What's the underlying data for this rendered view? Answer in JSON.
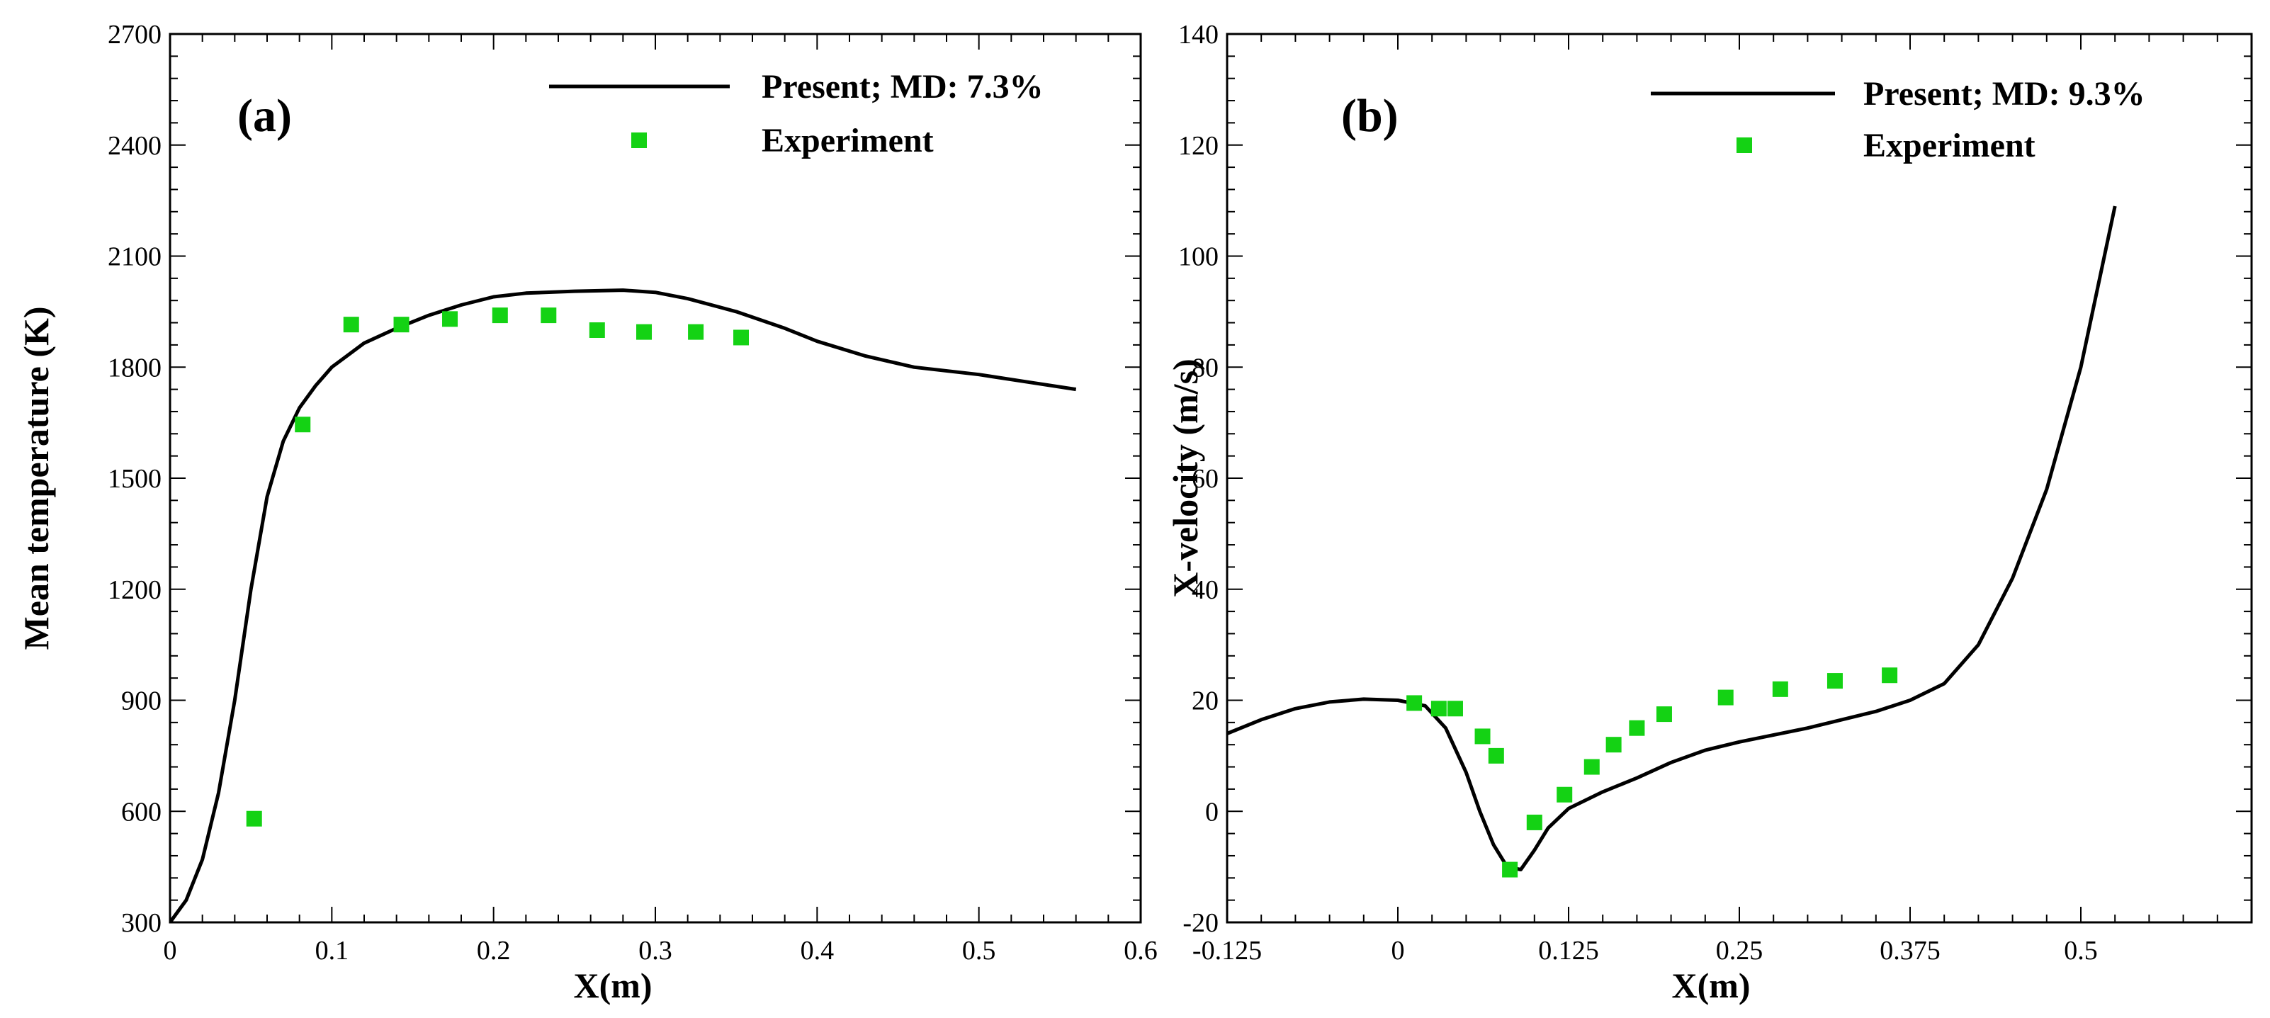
{
  "chart_data": [
    {
      "type": "line",
      "panel_label": "(a)",
      "xlabel": "X(m)",
      "ylabel": "Mean temperature (K)",
      "xlim": [
        0,
        0.6
      ],
      "ylim": [
        300,
        2700
      ],
      "xticks": [
        0,
        0.1,
        0.2,
        0.3,
        0.4,
        0.5,
        0.6
      ],
      "xtick_labels": [
        "0",
        "0.1",
        "0.2",
        "0.3",
        "0.4",
        "0.5",
        "0.6"
      ],
      "yticks": [
        300,
        600,
        900,
        1200,
        1500,
        1800,
        2100,
        2400,
        2700
      ],
      "ytick_labels": [
        "300",
        "600",
        "900",
        "1200",
        "1500",
        "1800",
        "2100",
        "2400",
        "2700"
      ],
      "legend_position": "top-right",
      "series": [
        {
          "name": "Present; MD: 7.3%",
          "kind": "line",
          "color": "#000000",
          "x": [
            0,
            0.01,
            0.02,
            0.03,
            0.04,
            0.05,
            0.06,
            0.07,
            0.08,
            0.09,
            0.1,
            0.12,
            0.14,
            0.16,
            0.18,
            0.2,
            0.22,
            0.25,
            0.28,
            0.3,
            0.32,
            0.35,
            0.38,
            0.4,
            0.43,
            0.46,
            0.5,
            0.53,
            0.56
          ],
          "y": [
            300,
            360,
            470,
            650,
            900,
            1200,
            1450,
            1600,
            1690,
            1750,
            1800,
            1865,
            1905,
            1940,
            1968,
            1990,
            2000,
            2005,
            2008,
            2002,
            1985,
            1950,
            1905,
            1870,
            1830,
            1800,
            1780,
            1760,
            1740
          ]
        },
        {
          "name": "Experiment",
          "kind": "scatter",
          "color": "#14d214",
          "x": [
            0.052,
            0.082,
            0.112,
            0.143,
            0.173,
            0.204,
            0.234,
            0.264,
            0.293,
            0.325,
            0.353
          ],
          "y": [
            580,
            1645,
            1915,
            1915,
            1930,
            1940,
            1940,
            1900,
            1895,
            1895,
            1880
          ]
        }
      ]
    },
    {
      "type": "line",
      "panel_label": "(b)",
      "xlabel": "X(m)",
      "ylabel": "X-velocity (m/s)",
      "xlim": [
        -0.125,
        0.625
      ],
      "ylim": [
        -20,
        140
      ],
      "xticks": [
        -0.125,
        0,
        0.125,
        0.25,
        0.375,
        0.5
      ],
      "xtick_labels": [
        "-0.125",
        "0",
        "0.125",
        "0.25",
        "0.375",
        "0.5"
      ],
      "yticks": [
        -20,
        0,
        20,
        40,
        60,
        80,
        100,
        120,
        140
      ],
      "ytick_labels": [
        "-20",
        "0",
        "20",
        "40",
        "60",
        "80",
        "100",
        "120",
        "140"
      ],
      "legend_position": "top-right",
      "series": [
        {
          "name": "Present; MD: 9.3%",
          "kind": "line",
          "color": "#000000",
          "x": [
            -0.125,
            -0.1,
            -0.075,
            -0.05,
            -0.025,
            0,
            0.02,
            0.035,
            0.05,
            0.06,
            0.07,
            0.08,
            0.09,
            0.1,
            0.11,
            0.125,
            0.15,
            0.175,
            0.2,
            0.225,
            0.25,
            0.3,
            0.35,
            0.375,
            0.4,
            0.425,
            0.45,
            0.475,
            0.5,
            0.525
          ],
          "y": [
            14,
            16.5,
            18.5,
            19.7,
            20.2,
            20,
            19,
            15,
            7,
            0,
            -6,
            -10,
            -10.5,
            -7,
            -3,
            0.5,
            3.5,
            6,
            8.8,
            11,
            12.5,
            15,
            18,
            20,
            23,
            30,
            42,
            58,
            80,
            109
          ]
        },
        {
          "name": "Experiment",
          "kind": "scatter",
          "color": "#14d214",
          "x": [
            0.012,
            0.03,
            0.042,
            0.062,
            0.072,
            0.082,
            0.1,
            0.122,
            0.142,
            0.158,
            0.175,
            0.195,
            0.24,
            0.28,
            0.32,
            0.36
          ],
          "y": [
            19.5,
            18.5,
            18.5,
            13.5,
            10,
            -10.5,
            -2,
            3,
            8,
            12,
            15,
            17.5,
            20.5,
            22,
            23.5,
            24.5
          ]
        }
      ]
    }
  ]
}
